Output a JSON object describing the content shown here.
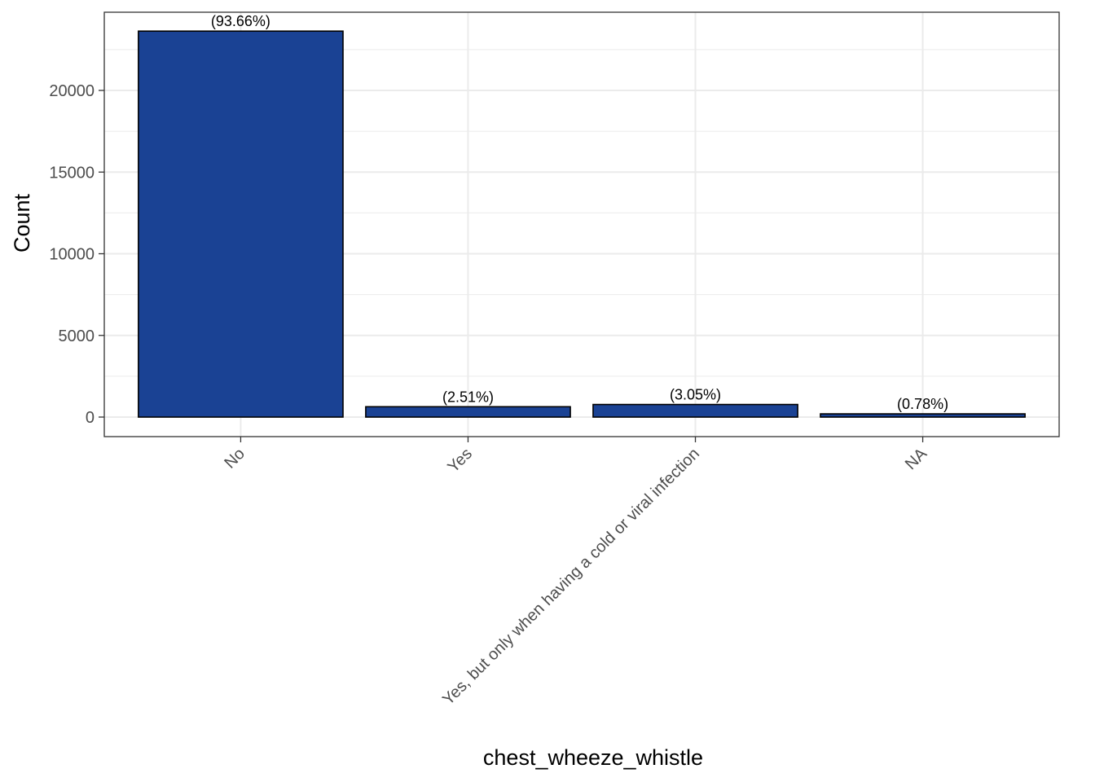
{
  "chart_data": {
    "type": "bar",
    "categories": [
      "No",
      "Yes",
      "Yes, but only when having a cold or viral infection",
      "NA"
    ],
    "values": [
      23630,
      633,
      770,
      197
    ],
    "bar_labels": [
      "(93.66%)",
      "(2.51%)",
      "(3.05%)",
      "(0.78%)"
    ],
    "title": "",
    "xlabel": "chest_wheeze_whistle",
    "ylabel": "Count",
    "yticks": [
      0,
      5000,
      10000,
      15000,
      20000
    ],
    "ytick_labels": [
      "0",
      "5000",
      "10000",
      "15000",
      "20000"
    ],
    "ylim": [
      -1181,
      24811
    ],
    "grid": true,
    "x_tick_rotation_deg": -45,
    "colors": {
      "bar_fill": "#1a4294",
      "bar_stroke": "#000000",
      "grid": "#ebebeb",
      "panel_border": "#333333",
      "tick_label": "#4d4d4d"
    }
  }
}
